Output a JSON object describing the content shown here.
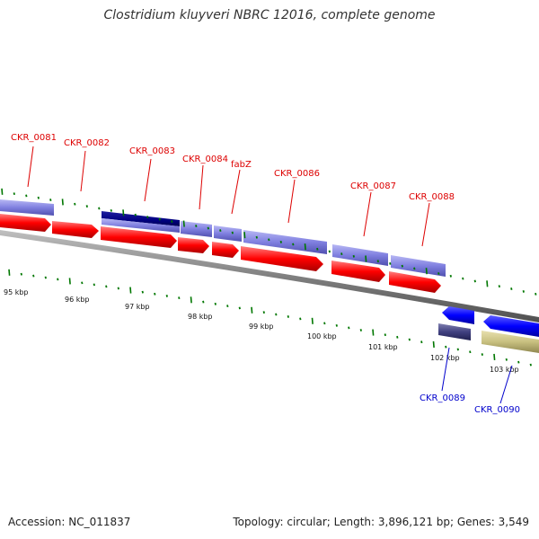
{
  "header": {
    "title": "Clostridium kluyveri NBRC 12016, complete genome"
  },
  "footer": {
    "accession": "Accession: NC_011837",
    "summary": "Topology: circular; Length: 3,896,121 bp; Genes: 3,549"
  },
  "colors": {
    "forward_label": "#dd0000",
    "reverse_label": "#0000cc",
    "cds_forward": "#ff0000",
    "product_forward": "#8080e0",
    "product_highlight": "#000080",
    "cds_reverse": "#0000ff",
    "product_reverse_dark": "#404080",
    "product_reverse_gold": "#c8c080",
    "backbone": "#808080",
    "ticks": "#007700"
  },
  "scale": {
    "unit": "kbp",
    "labels": [
      "95 kbp",
      "96 kbp",
      "97 kbp",
      "98 kbp",
      "99 kbp",
      "100 kbp",
      "101 kbp",
      "102 kbp",
      "103 kbp"
    ]
  },
  "genes": {
    "forward": [
      "CKR_0081",
      "CKR_0082",
      "CKR_0083",
      "CKR_0084",
      "fabZ",
      "CKR_0086",
      "CKR_0087",
      "CKR_0088"
    ],
    "reverse": [
      "CKR_0089",
      "CKR_0090"
    ]
  }
}
